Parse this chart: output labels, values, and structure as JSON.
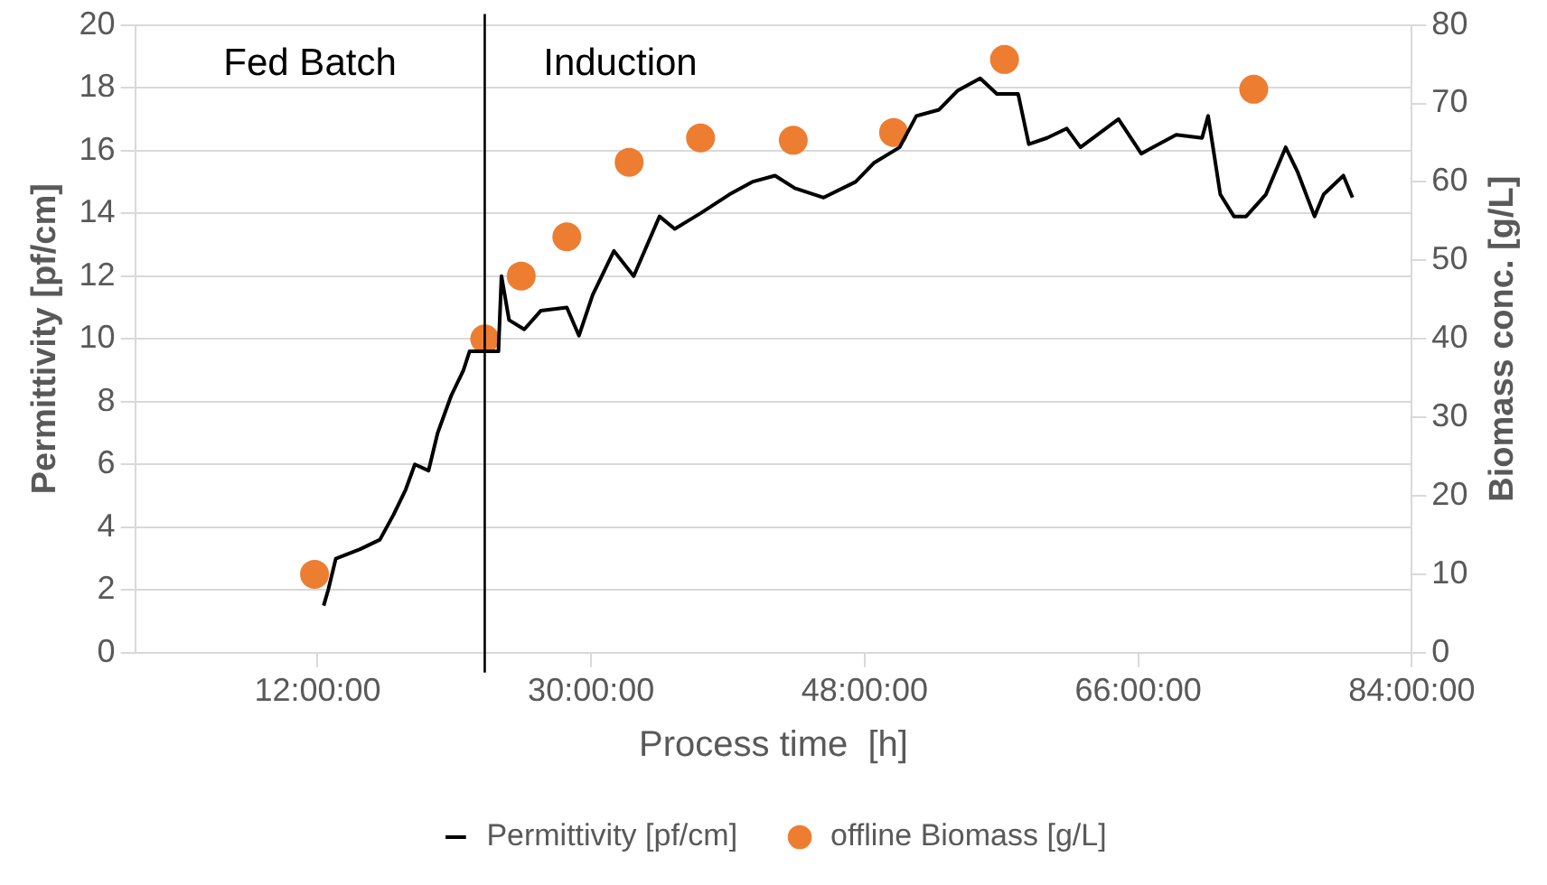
{
  "chart_data": {
    "type": "line",
    "xlabel": "Process time  [h]",
    "ylabel": "Permittivity [pf/cm]",
    "y2label": "Biomass conc. [g/L]",
    "xlim": [
      0,
      84
    ],
    "xticks": [
      {
        "value": 12,
        "label": "12:00:00"
      },
      {
        "value": 30,
        "label": "30:00:00"
      },
      {
        "value": 48,
        "label": "48:00:00"
      },
      {
        "value": 66,
        "label": "66:00:00"
      },
      {
        "value": 84,
        "label": "84:00:00"
      }
    ],
    "ylim": [
      0,
      20
    ],
    "yticks": [
      0,
      2,
      4,
      6,
      8,
      10,
      12,
      14,
      16,
      18,
      20
    ],
    "y2lim": [
      0,
      80
    ],
    "y2ticks": [
      0,
      10,
      20,
      30,
      40,
      50,
      60,
      70,
      80
    ],
    "grid": "y",
    "legend": "bottom",
    "line_style": "solid",
    "ref_lines": [
      {
        "axis": "x",
        "value": 23,
        "color": "#000000"
      }
    ],
    "annotations": [
      "Fed Batch",
      "Induction"
    ],
    "series": [
      {
        "name": "Permittivity [pf/cm]",
        "marker": "none",
        "color": "#000000",
        "x": [
          12.4,
          12.7,
          13.2,
          14.8,
          16.1,
          17.0,
          17.8,
          18.4,
          19.3,
          19.9,
          20.8,
          21.6,
          22.0,
          23.9,
          24.1,
          24.6,
          25.6,
          26.7,
          28.4,
          29.2,
          30.1,
          31.5,
          32.8,
          34.5,
          35.5,
          37.2,
          39.1,
          40.6,
          42.1,
          43.4,
          45.3,
          47.4,
          48.6,
          50.3,
          51.4,
          52.9,
          54.1,
          55.6,
          56.7,
          58.1,
          58.8,
          60.0,
          61.3,
          62.2,
          64.7,
          66.2,
          68.5,
          70.2,
          70.6,
          71.4,
          72.3,
          73.1,
          74.4,
          75.7,
          76.5,
          77.6,
          78.2,
          79.5,
          80.1
        ],
        "values": [
          1.5,
          2.0,
          3.0,
          3.3,
          3.6,
          4.4,
          5.2,
          6.0,
          5.8,
          7.0,
          8.2,
          9.0,
          9.6,
          9.6,
          12.0,
          10.6,
          10.3,
          10.9,
          11.0,
          10.1,
          11.4,
          12.8,
          12.0,
          13.9,
          13.5,
          14.0,
          14.6,
          15.0,
          15.2,
          14.8,
          14.5,
          15.0,
          15.6,
          16.1,
          17.1,
          17.3,
          17.9,
          18.3,
          17.8,
          17.8,
          16.2,
          16.4,
          16.7,
          16.1,
          17.0,
          15.9,
          16.5,
          16.4,
          17.1,
          14.6,
          13.9,
          13.9,
          14.6,
          16.1,
          15.3,
          13.9,
          14.6,
          15.2,
          14.5
        ]
      },
      {
        "name": "offline Biomass [g/L]",
        "type": "scatter",
        "axis": "y2",
        "marker": "circle",
        "color": "#ed7d31",
        "x": [
          11.8,
          23.0,
          25.4,
          28.4,
          32.5,
          37.2,
          43.3,
          49.9,
          57.2,
          73.6
        ],
        "values": [
          10,
          40,
          48,
          53,
          62.5,
          65.6,
          65.3,
          66.3,
          75.6,
          71.8
        ]
      }
    ]
  }
}
